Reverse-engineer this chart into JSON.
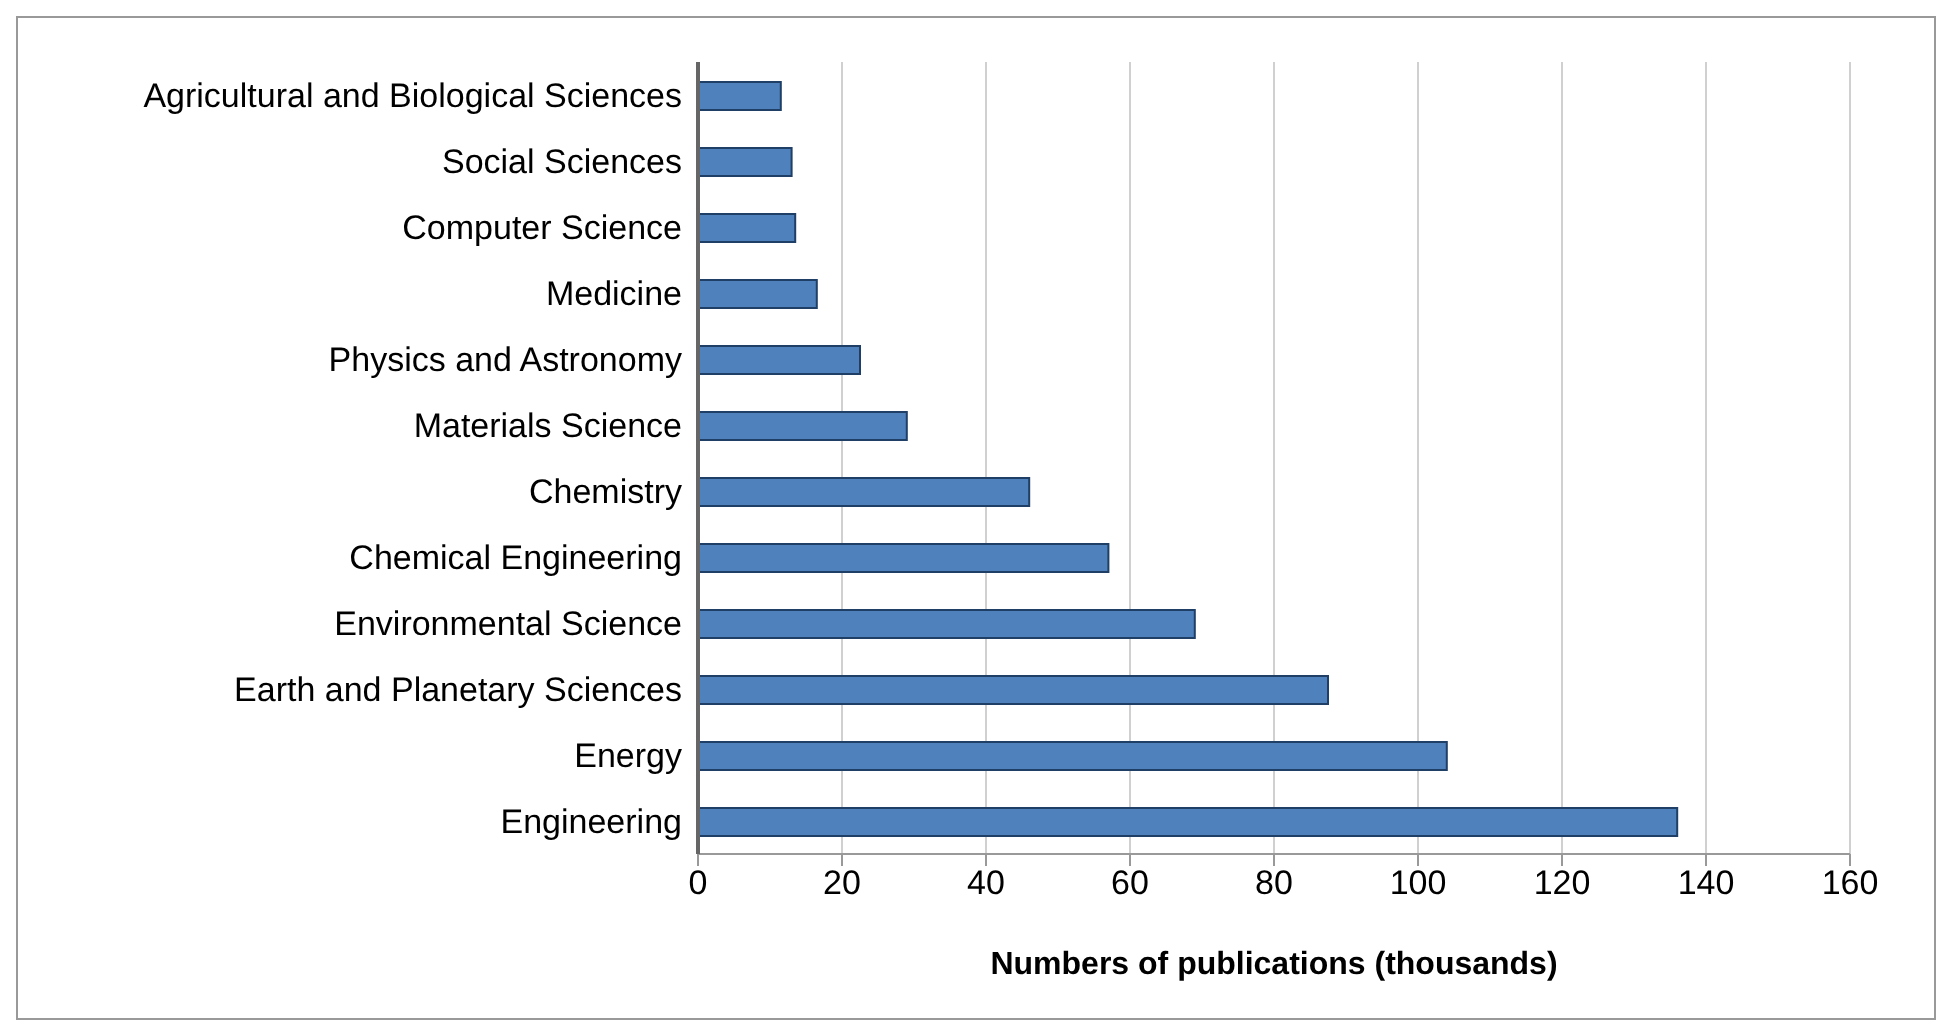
{
  "chart_data": {
    "type": "bar",
    "orientation": "horizontal",
    "xlabel": "Numbers of publications (thousands)",
    "categories": [
      "Agricultural and Biological Sciences",
      "Social Sciences",
      "Computer Science",
      "Medicine",
      "Physics and Astronomy",
      "Materials Science",
      "Chemistry",
      "Chemical Engineering",
      "Environmental Science",
      "Earth and Planetary Sciences",
      "Energy",
      "Engineering"
    ],
    "values": [
      11.5,
      13,
      13.5,
      16.5,
      22.5,
      29,
      46,
      57,
      69,
      87.5,
      104,
      136
    ],
    "color": "#4f81bd",
    "xlim": [
      0,
      160
    ],
    "xticks": [
      0,
      20,
      40,
      60,
      80,
      100,
      120,
      140,
      160
    ],
    "grid": "x",
    "legend": false
  }
}
